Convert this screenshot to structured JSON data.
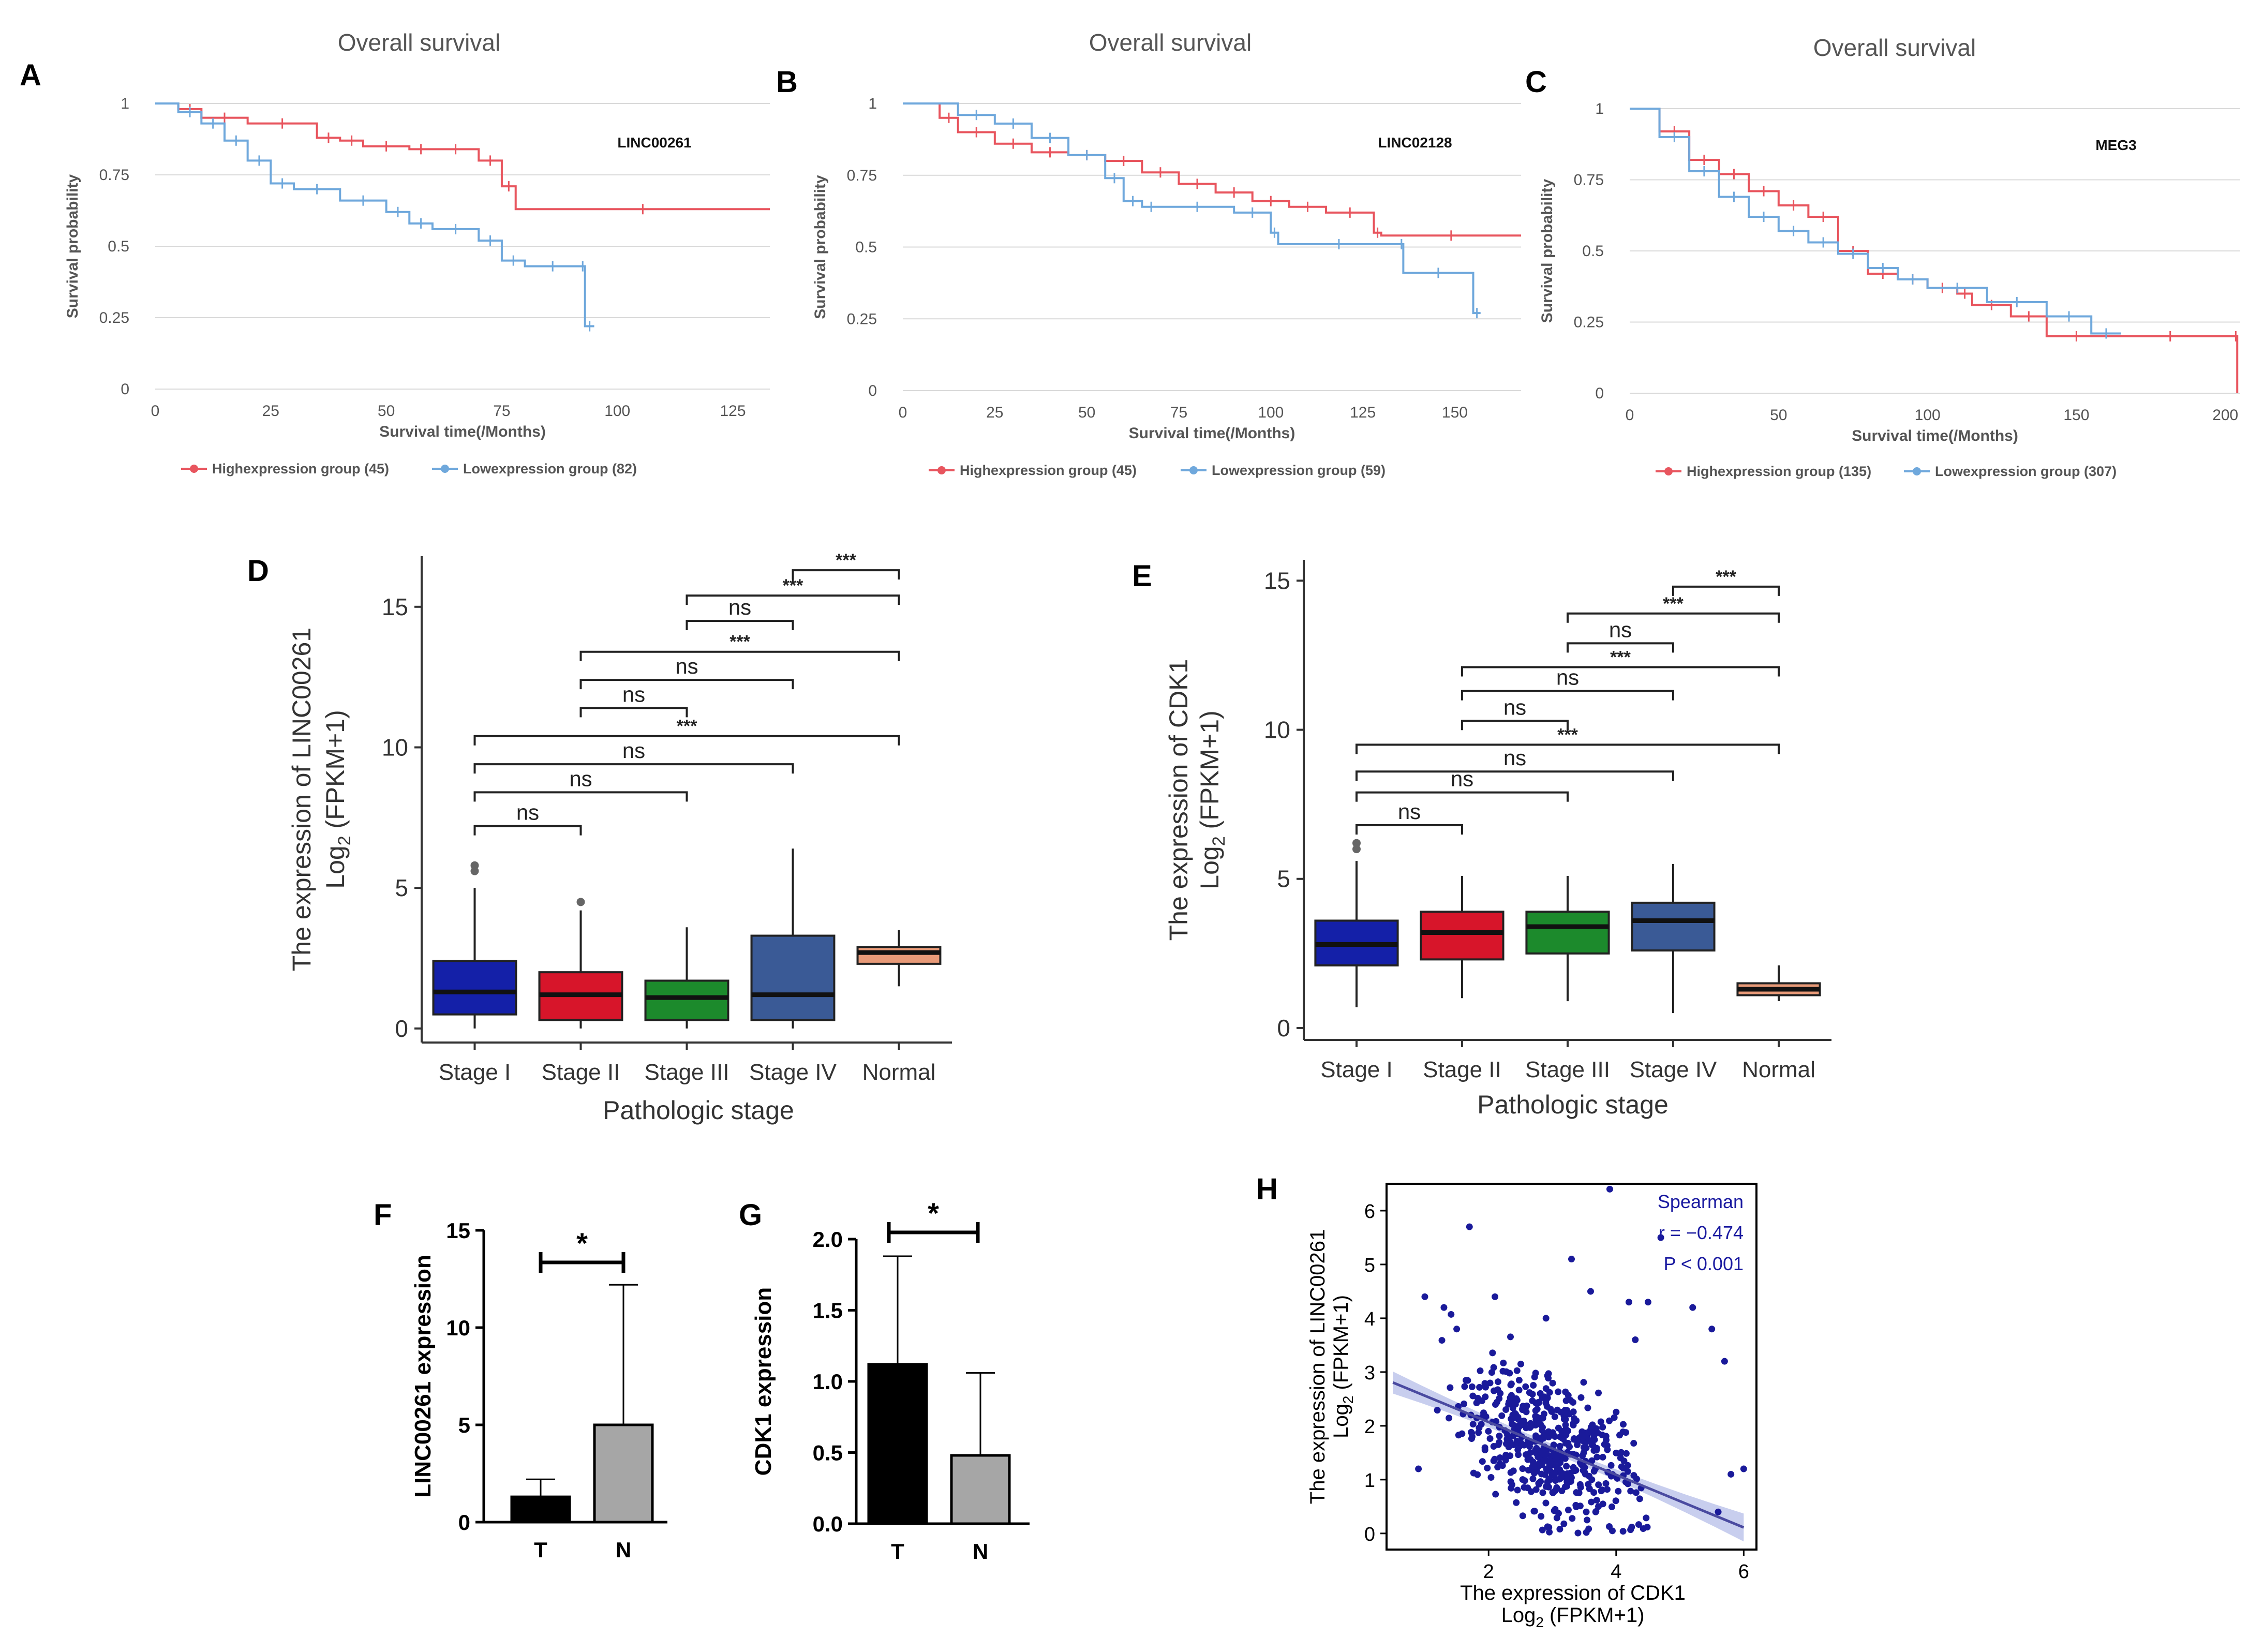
{
  "panel_letters": [
    "A",
    "B",
    "C",
    "D",
    "E",
    "F",
    "G",
    "H"
  ],
  "colors": {
    "high": "#e8555e",
    "low": "#6fa8dc",
    "stage1": "#1420a8",
    "stage2": "#d7152a",
    "stage3": "#1c8a2c",
    "stage4": "#3a5a96",
    "normal": "#e89a78",
    "scatter": "#1a1a9a",
    "fitline": "#4a4aa0"
  },
  "chart_data": [
    {
      "panel": "A",
      "type": "line",
      "title": "Overall survival",
      "gene": "LINC00261",
      "xlabel": "Survival time(/Months)",
      "ylabel": "Survival probability",
      "xlim": [
        0,
        133
      ],
      "ylim": [
        0,
        1
      ],
      "xticks": [
        "0",
        "25",
        "50",
        "75",
        "100",
        "125"
      ],
      "xtick_values": [
        0,
        25,
        50,
        75,
        100,
        125
      ],
      "yticks": [
        "0",
        "0.25",
        "0.5",
        "0.75",
        "1"
      ],
      "ytick_values": [
        0,
        0.25,
        0.5,
        0.75,
        1
      ],
      "legend": [
        "Highexpression group (45)",
        "Lowexpression group (82)"
      ],
      "series": [
        {
          "name": "Highexpression group (45)",
          "color_key": "high",
          "x": [
            0,
            5,
            10,
            20,
            35,
            40,
            45,
            55,
            60,
            70,
            75,
            78,
            133
          ],
          "y": [
            1,
            0.98,
            0.95,
            0.93,
            0.88,
            0.87,
            0.85,
            0.84,
            0.84,
            0.8,
            0.71,
            0.63,
            0.63
          ]
        },
        {
          "name": "Lowexpression group (82)",
          "color_key": "low",
          "x": [
            0,
            5,
            10,
            15,
            20,
            25,
            30,
            40,
            50,
            55,
            60,
            70,
            75,
            80,
            92,
            93,
            95
          ],
          "y": [
            1,
            0.97,
            0.93,
            0.87,
            0.8,
            0.72,
            0.7,
            0.66,
            0.62,
            0.58,
            0.56,
            0.52,
            0.45,
            0.43,
            0.43,
            0.22,
            0.22
          ]
        }
      ]
    },
    {
      "panel": "B",
      "type": "line",
      "title": "Overall survival",
      "gene": "LINC02128",
      "xlabel": "Survival time(/Months)",
      "ylabel": "Survival probability",
      "xlim": [
        0,
        168
      ],
      "ylim": [
        0,
        1
      ],
      "xticks": [
        "0",
        "25",
        "50",
        "75",
        "100",
        "125",
        "150"
      ],
      "xtick_values": [
        0,
        25,
        50,
        75,
        100,
        125,
        150
      ],
      "yticks": [
        "0",
        "0.25",
        "0.5",
        "0.75",
        "1"
      ],
      "ytick_values": [
        0,
        0.25,
        0.5,
        0.75,
        1
      ],
      "legend": [
        "Highexpression group (45)",
        "Lowexpression group (59)"
      ],
      "series": [
        {
          "name": "Highexpression group (45)",
          "color_key": "high",
          "x": [
            0,
            10,
            15,
            25,
            35,
            45,
            55,
            65,
            75,
            85,
            95,
            105,
            115,
            128,
            130,
            168
          ],
          "y": [
            1,
            0.95,
            0.9,
            0.86,
            0.83,
            0.82,
            0.8,
            0.76,
            0.72,
            0.69,
            0.66,
            0.64,
            0.62,
            0.55,
            0.54,
            0.54
          ]
        },
        {
          "name": "Lowexpression group (59)",
          "color_key": "low",
          "x": [
            0,
            15,
            25,
            35,
            45,
            55,
            60,
            65,
            70,
            90,
            100,
            102,
            135,
            136,
            155,
            157
          ],
          "y": [
            1,
            0.96,
            0.93,
            0.88,
            0.82,
            0.74,
            0.66,
            0.64,
            0.64,
            0.62,
            0.55,
            0.51,
            0.51,
            0.41,
            0.27,
            0.27
          ]
        }
      ]
    },
    {
      "panel": "C",
      "type": "line",
      "title": "Overall survival",
      "gene": "MEG3",
      "xlabel": "Survival time(/Months)",
      "ylabel": "Survival probability",
      "xlim": [
        0,
        205
      ],
      "ylim": [
        0,
        1
      ],
      "xticks": [
        "0",
        "50",
        "100",
        "150",
        "200"
      ],
      "xtick_values": [
        0,
        50,
        100,
        150,
        200
      ],
      "yticks": [
        "0",
        "0.25",
        "0.5",
        "0.75",
        "1"
      ],
      "ytick_values": [
        0,
        0.25,
        0.5,
        0.75,
        1
      ],
      "legend": [
        "Highexpression group (135)",
        "Lowexpression group (307)"
      ],
      "series": [
        {
          "name": "Highexpression group (135)",
          "color_key": "high",
          "x": [
            0,
            10,
            20,
            30,
            40,
            50,
            60,
            70,
            80,
            90,
            100,
            110,
            115,
            128,
            140,
            160,
            203,
            204
          ],
          "y": [
            1,
            0.92,
            0.82,
            0.77,
            0.71,
            0.66,
            0.62,
            0.5,
            0.42,
            0.4,
            0.37,
            0.35,
            0.31,
            0.27,
            0.2,
            0.2,
            0.2,
            0
          ]
        },
        {
          "name": "Lowexpression group (307)",
          "color_key": "low",
          "x": [
            0,
            10,
            20,
            30,
            40,
            50,
            60,
            70,
            80,
            90,
            100,
            120,
            140,
            155,
            165
          ],
          "y": [
            1,
            0.9,
            0.78,
            0.69,
            0.62,
            0.57,
            0.53,
            0.49,
            0.44,
            0.4,
            0.37,
            0.32,
            0.27,
            0.21,
            0.21
          ]
        }
      ]
    },
    {
      "panel": "D",
      "type": "box",
      "ylabel_line1": "The expression of LINC00261",
      "ylabel_line2": "(FPKM+1)",
      "ylabel_log": "Log",
      "ylabel_sub": "2",
      "xlabel": "Pathologic stage",
      "categories": [
        "Stage I",
        "Stage II",
        "Stage III",
        "Stage IV",
        "Normal"
      ],
      "ylim": [
        -0.5,
        16.8
      ],
      "yticks": [
        "0",
        "5",
        "10",
        "15"
      ],
      "ytick_values": [
        0,
        5,
        10,
        15
      ],
      "boxes": [
        {
          "min": 0,
          "q1": 0.5,
          "median": 1.3,
          "q3": 2.4,
          "max": 5.0,
          "outliers": [
            5.6,
            5.8
          ],
          "color_key": "stage1"
        },
        {
          "min": 0,
          "q1": 0.3,
          "median": 1.2,
          "q3": 2.0,
          "max": 4.2,
          "outliers": [
            4.5
          ],
          "color_key": "stage2"
        },
        {
          "min": 0,
          "q1": 0.3,
          "median": 1.1,
          "q3": 1.7,
          "max": 3.6,
          "outliers": [],
          "color_key": "stage3"
        },
        {
          "min": 0,
          "q1": 0.3,
          "median": 1.2,
          "q3": 3.3,
          "max": 6.4,
          "outliers": [],
          "color_key": "stage4"
        },
        {
          "min": 1.5,
          "q1": 2.3,
          "median": 2.7,
          "q3": 2.9,
          "max": 3.5,
          "outliers": [],
          "color_key": "normal"
        }
      ],
      "comparisons": [
        {
          "a": 3,
          "b": 4,
          "y": 16.3,
          "label": "***"
        },
        {
          "a": 2,
          "b": 4,
          "y": 15.4,
          "label": "***"
        },
        {
          "a": 2,
          "b": 3,
          "y": 14.5,
          "label": "ns"
        },
        {
          "a": 1,
          "b": 4,
          "y": 13.4,
          "label": "***"
        },
        {
          "a": 1,
          "b": 3,
          "y": 12.4,
          "label": "ns"
        },
        {
          "a": 1,
          "b": 2,
          "y": 11.4,
          "label": "ns"
        },
        {
          "a": 0,
          "b": 4,
          "y": 10.4,
          "label": "***"
        },
        {
          "a": 0,
          "b": 3,
          "y": 9.4,
          "label": "ns"
        },
        {
          "a": 0,
          "b": 2,
          "y": 8.4,
          "label": "ns"
        },
        {
          "a": 0,
          "b": 1,
          "y": 7.2,
          "label": "ns"
        }
      ]
    },
    {
      "panel": "E",
      "type": "box",
      "ylabel_line1": "The expression of CDK1",
      "ylabel_line2": "(FPKM+1)",
      "ylabel_log": "Log",
      "ylabel_sub": "2",
      "xlabel": "Pathologic stage",
      "categories": [
        "Stage I",
        "Stage II",
        "Stage III",
        "Stage IV",
        "Normal"
      ],
      "ylim": [
        -0.4,
        15.7
      ],
      "yticks": [
        "0",
        "5",
        "10",
        "15"
      ],
      "ytick_values": [
        0,
        5,
        10,
        15
      ],
      "boxes": [
        {
          "min": 0.7,
          "q1": 2.1,
          "median": 2.8,
          "q3": 3.6,
          "max": 5.6,
          "outliers": [
            6.0,
            6.2
          ],
          "color_key": "stage1"
        },
        {
          "min": 1.0,
          "q1": 2.3,
          "median": 3.2,
          "q3": 3.9,
          "max": 5.1,
          "outliers": [],
          "color_key": "stage2"
        },
        {
          "min": 0.9,
          "q1": 2.5,
          "median": 3.4,
          "q3": 3.9,
          "max": 5.1,
          "outliers": [],
          "color_key": "stage3"
        },
        {
          "min": 0.5,
          "q1": 2.6,
          "median": 3.6,
          "q3": 4.2,
          "max": 5.5,
          "outliers": [],
          "color_key": "stage4"
        },
        {
          "min": 0.9,
          "q1": 1.1,
          "median": 1.3,
          "q3": 1.5,
          "max": 2.1,
          "outliers": [],
          "color_key": "normal"
        }
      ],
      "comparisons": [
        {
          "a": 3,
          "b": 4,
          "y": 14.8,
          "label": "***"
        },
        {
          "a": 2,
          "b": 4,
          "y": 13.9,
          "label": "***"
        },
        {
          "a": 2,
          "b": 3,
          "y": 12.9,
          "label": "ns"
        },
        {
          "a": 1,
          "b": 4,
          "y": 12.1,
          "label": "***"
        },
        {
          "a": 1,
          "b": 3,
          "y": 11.3,
          "label": "ns"
        },
        {
          "a": 1,
          "b": 2,
          "y": 10.3,
          "label": "ns"
        },
        {
          "a": 0,
          "b": 4,
          "y": 9.5,
          "label": "***"
        },
        {
          "a": 0,
          "b": 3,
          "y": 8.6,
          "label": "ns"
        },
        {
          "a": 0,
          "b": 2,
          "y": 7.9,
          "label": "ns"
        },
        {
          "a": 0,
          "b": 1,
          "y": 6.8,
          "label": "ns"
        }
      ]
    },
    {
      "panel": "F",
      "type": "bar",
      "ylabel": "LINC00261 expression",
      "categories": [
        "T",
        "N"
      ],
      "values": [
        1.3,
        5.0
      ],
      "errors": [
        0.9,
        7.2
      ],
      "ylim": [
        0,
        15
      ],
      "yticks": [
        "0",
        "5",
        "10",
        "15"
      ],
      "ytick_values": [
        0,
        5,
        10,
        15
      ],
      "significance": "*",
      "bar_colors": [
        "#000000",
        "#a6a6a6"
      ]
    },
    {
      "panel": "G",
      "type": "bar",
      "ylabel": "CDK1 expression",
      "categories": [
        "T",
        "N"
      ],
      "values": [
        1.12,
        0.48
      ],
      "errors": [
        0.76,
        0.58
      ],
      "ylim": [
        0,
        2.0
      ],
      "yticks": [
        "0.0",
        "0.5",
        "1.0",
        "1.5",
        "2.0"
      ],
      "ytick_values": [
        0,
        0.5,
        1,
        1.5,
        2
      ],
      "significance": "*",
      "bar_colors": [
        "#000000",
        "#a6a6a6"
      ]
    },
    {
      "panel": "H",
      "type": "scatter",
      "xlabel_line1": "The expression of CDK1",
      "xlabel_line2": "(FPKM+1)",
      "xlabel_log": "Log",
      "xlabel_sub": "2",
      "ylabel_line1": "The expression of LINC00261",
      "ylabel_line2": "(FPKM+1)",
      "ylabel_log": "Log",
      "ylabel_sub": "2",
      "xlim": [
        0.4,
        6.2
      ],
      "ylim": [
        -0.3,
        6.5
      ],
      "xticks": [
        "2",
        "4",
        "6"
      ],
      "xtick_values": [
        2,
        4,
        6
      ],
      "yticks": [
        "0",
        "1",
        "2",
        "3",
        "4",
        "5",
        "6"
      ],
      "ytick_values": [
        0,
        1,
        2,
        3,
        4,
        5,
        6
      ],
      "annotations": [
        "Spearman",
        "r = −0.474",
        "P < 0.001"
      ],
      "fit": {
        "intercept": 3.05,
        "slope": -0.49,
        "x_range": [
          0.5,
          6.0
        ]
      },
      "n_points": 520,
      "points": [
        [
          1.7,
          5.7
        ],
        [
          3.9,
          6.4
        ],
        [
          1.0,
          4.4
        ],
        [
          1.3,
          4.2
        ],
        [
          2.1,
          4.4
        ],
        [
          3.3,
          5.1
        ],
        [
          4.7,
          5.5
        ],
        [
          4.2,
          4.3
        ],
        [
          4.5,
          4.3
        ],
        [
          5.2,
          4.2
        ],
        [
          5.5,
          3.8
        ],
        [
          5.7,
          3.2
        ],
        [
          5.8,
          1.1
        ],
        [
          6.0,
          1.2
        ],
        [
          4.3,
          3.6
        ],
        [
          3.6,
          4.5
        ],
        [
          2.9,
          4.0
        ],
        [
          1.5,
          3.8
        ],
        [
          0.9,
          1.2
        ],
        [
          5.6,
          0.4
        ]
      ]
    }
  ]
}
